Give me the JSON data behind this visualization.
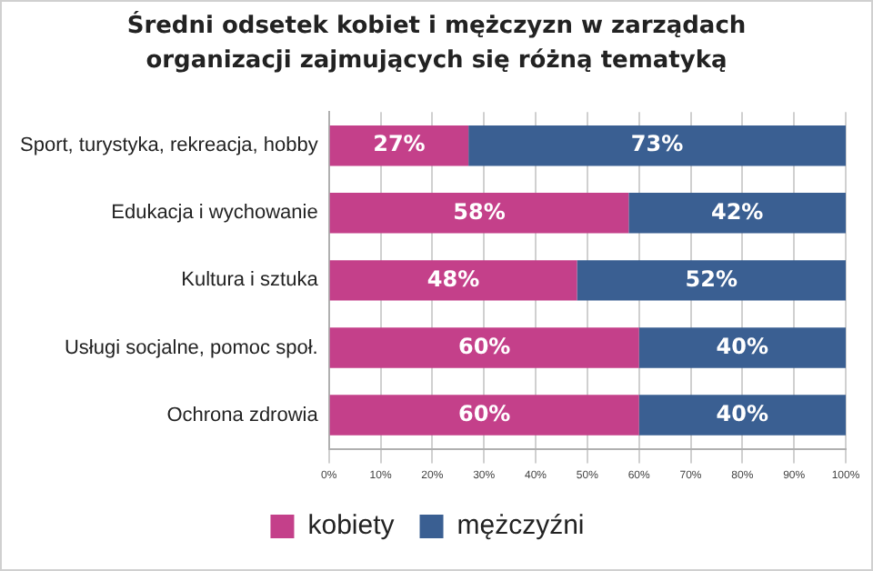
{
  "chart_data": {
    "type": "bar",
    "orientation": "horizontal",
    "stacked": true,
    "title": "Średni odsetek kobiet i mężczyzn w zarządach organizacji zajmujących się różną tematyką",
    "categories": [
      "Sport, turystyka, rekreacja, hobby",
      "Edukacja i wychowanie",
      "Kultura i sztuka",
      "Usługi socjalne, pomoc społ.",
      "Ochrona zdrowia"
    ],
    "series": [
      {
        "name": "kobiety",
        "color": "#c4408a",
        "values": [
          27,
          58,
          48,
          60,
          60
        ],
        "value_labels": [
          "27%",
          "58%",
          "48%",
          "60%",
          "60%"
        ]
      },
      {
        "name": "mężczyźni",
        "color": "#3a5f92",
        "values": [
          73,
          42,
          52,
          40,
          40
        ],
        "value_labels": [
          "73%",
          "42%",
          "52%",
          "40%",
          "40%"
        ]
      }
    ],
    "xlim": [
      0,
      100
    ],
    "xticks": [
      {
        "value": 0,
        "label": "0%"
      },
      {
        "value": 10,
        "label": "10%"
      },
      {
        "value": 20,
        "label": "20%"
      },
      {
        "value": 30,
        "label": "30%"
      },
      {
        "value": 40,
        "label": "40%"
      },
      {
        "value": 50,
        "label": "50%"
      },
      {
        "value": 60,
        "label": "60%"
      },
      {
        "value": 70,
        "label": "70%"
      },
      {
        "value": 80,
        "label": "80%"
      },
      {
        "value": 90,
        "label": "90%"
      },
      {
        "value": 100,
        "label": "100%"
      }
    ],
    "grid": "x",
    "legend": "bottom"
  }
}
